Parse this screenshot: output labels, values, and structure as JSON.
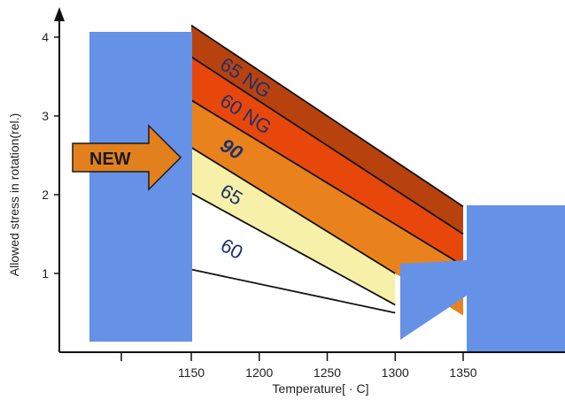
{
  "chart_data": {
    "type": "area",
    "xlabel": "Temperature[ · C]",
    "ylabel": "Allowed stress in rotation(rel.)",
    "x_ticks": [
      1150,
      1200,
      1250,
      1300,
      1350
    ],
    "y_ticks": [
      1,
      2,
      3,
      4
    ],
    "xlim": [
      1070,
      1425
    ],
    "ylim": [
      0,
      4.5
    ],
    "grid": false,
    "callout": "NEW",
    "series": [
      {
        "name": "65 NG",
        "color": "#b8420e",
        "start": [
          1150,
          4.15
        ],
        "end": [
          1350,
          1.85
        ]
      },
      {
        "name": "60 NG",
        "color": "#e8470c",
        "start": [
          1150,
          3.75
        ],
        "end": [
          1350,
          1.5
        ]
      },
      {
        "name": "90",
        "color": "#e9821c",
        "start": [
          1150,
          3.2
        ],
        "end": [
          1350,
          1.1
        ]
      },
      {
        "name": "65",
        "color": "#f6f0a8",
        "start": [
          1150,
          2.6
        ],
        "end": [
          1300,
          1.0
        ]
      },
      {
        "name": "60",
        "color": "#ffffff",
        "start": [
          1150,
          2.02
        ],
        "end": [
          1300,
          0.6
        ]
      }
    ],
    "reference_lines": [
      {
        "start": [
          1150,
          1.05
        ],
        "end": [
          1300,
          0.5
        ]
      }
    ],
    "colors": {
      "mask": "#6591e6",
      "arrow": "#e2801e",
      "line": "#111111"
    }
  }
}
